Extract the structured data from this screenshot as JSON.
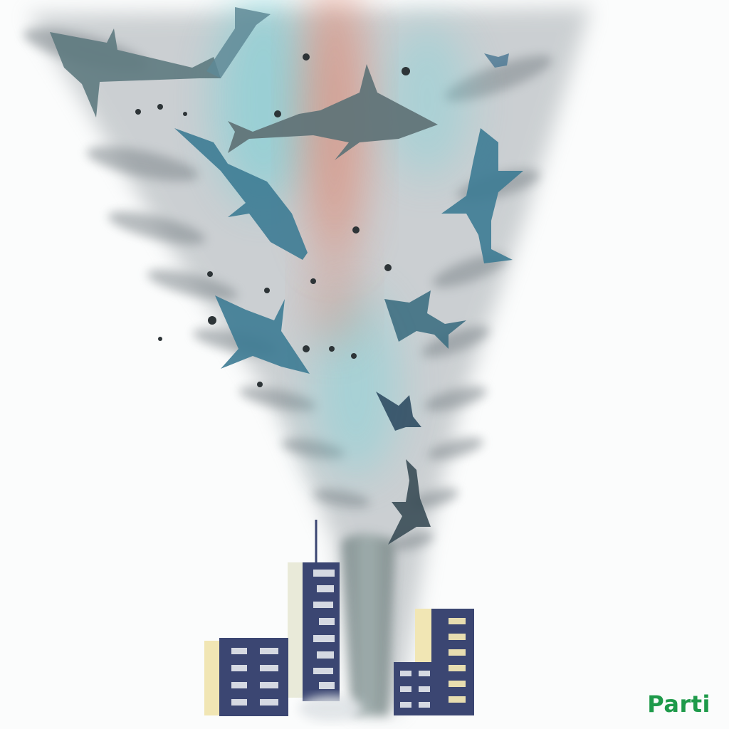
{
  "watermark": {
    "text": "Parti",
    "color": "#1e9a4a"
  },
  "palette": {
    "funnel_gray": "#8f979c",
    "funnel_cyan": "#5fd0d8",
    "funnel_red": "#e0826a",
    "shark_blue": "#3d7b94",
    "shark_gray": "#5d777c",
    "building_navy": "#3b4672",
    "building_cream": "#f1e6b4",
    "window_light": "#e6e9ef"
  },
  "icons": [
    "tornado",
    "shark",
    "skyscraper"
  ]
}
